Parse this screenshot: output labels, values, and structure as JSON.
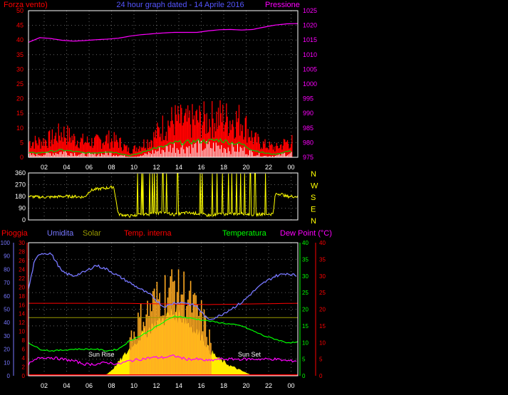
{
  "chart_data": [
    {
      "type": "line",
      "panel": "wind-pressure",
      "title": "24 hour graph dated - 14 Aprile 2016",
      "left_axis": {
        "label": "Forza vento)",
        "ticks": [
          "0",
          "5",
          "10",
          "15",
          "20",
          "25",
          "30",
          "35",
          "40",
          "45",
          "50"
        ],
        "ylim": [
          0,
          50
        ]
      },
      "right_axis": {
        "label": "Pressione",
        "ticks": [
          "975",
          "980",
          "985",
          "990",
          "995",
          "1000",
          "1005",
          "1010",
          "1015",
          "1020",
          "1025"
        ],
        "ylim": [
          975,
          1025
        ]
      },
      "x_ticks": [
        "02",
        "04",
        "06",
        "08",
        "10",
        "12",
        "14",
        "16",
        "18",
        "20",
        "22",
        "00"
      ],
      "grid": true,
      "series": [
        {
          "name": "Pressione",
          "color": "#ff00ff",
          "x": [
            0,
            1,
            2,
            3,
            4,
            5,
            6,
            7,
            8,
            9,
            10,
            11,
            12,
            13,
            14,
            15,
            16,
            17,
            18,
            19,
            20,
            21,
            22,
            23,
            24
          ],
          "y": [
            1014.2,
            1015.8,
            1015.5,
            1014.9,
            1014.6,
            1014.8,
            1015.1,
            1015.3,
            1015.6,
            1016.3,
            1016.8,
            1017.1,
            1017.4,
            1017.6,
            1017.6,
            1017.6,
            1018.1,
            1018.5,
            1018.6,
            1018.4,
            1018.6,
            1019.4,
            1020.1,
            1020.5,
            1020.6
          ]
        },
        {
          "color": "#ff0000",
          "x": [
            0,
            1,
            2,
            3,
            4,
            5,
            6,
            7,
            8,
            9,
            10,
            11,
            12,
            13,
            14,
            15,
            16,
            17,
            18,
            19,
            20,
            21,
            22,
            23,
            24
          ],
          "y": [
            5,
            5,
            6,
            8,
            6,
            5,
            5,
            6,
            5,
            2,
            4,
            6,
            10,
            12,
            11,
            12,
            12,
            13,
            12,
            12,
            6,
            4,
            3,
            5,
            5
          ]
        },
        {
          "color": "#00cc00",
          "x": [
            0,
            1,
            2,
            3,
            4,
            5,
            6,
            7,
            8,
            9,
            10,
            11,
            12,
            13,
            14,
            15,
            16,
            17,
            18,
            19,
            20,
            21,
            22,
            23,
            24
          ],
          "y": [
            1.5,
            1.5,
            2,
            2.5,
            2,
            1.5,
            1.5,
            2,
            1.5,
            0.5,
            1.5,
            3,
            3.5,
            5,
            5,
            5.5,
            5.5,
            6,
            5,
            4.5,
            2.5,
            1.5,
            1,
            2,
            2
          ]
        },
        {
          "color": "#ffffff",
          "x": [
            0,
            1,
            2,
            3,
            4,
            5,
            6,
            7,
            8,
            9,
            10,
            11,
            12,
            13,
            14,
            15,
            16,
            17,
            18,
            19,
            20,
            21,
            22,
            23,
            24
          ],
          "y": [
            1,
            1,
            1.5,
            2,
            1.5,
            1,
            1,
            1.5,
            1,
            0,
            0.5,
            2,
            3,
            4,
            4,
            4,
            4,
            4,
            3.5,
            3,
            1.5,
            0.5,
            0.5,
            1.5,
            1.5
          ]
        }
      ]
    },
    {
      "type": "line",
      "panel": "wind-direction",
      "left_axis": {
        "ticks": [
          "0",
          "90",
          "180",
          "270",
          "360"
        ],
        "ylim": [
          0,
          360
        ]
      },
      "right_labels": [
        "N",
        "W",
        "S",
        "E",
        "N"
      ],
      "grid": true,
      "series": [
        {
          "color": "#ffff00",
          "x": [
            0,
            1,
            2,
            3,
            4,
            5,
            5.5,
            6,
            7,
            7.4,
            7.6,
            8,
            9,
            10,
            11,
            12,
            13,
            14,
            15,
            16,
            17,
            18,
            19,
            20,
            21,
            21.8,
            22,
            22.5,
            23,
            24
          ],
          "y": [
            180,
            175,
            175,
            180,
            180,
            175,
            225,
            235,
            245,
            250,
            255,
            45,
            30,
            40,
            45,
            60,
            40,
            55,
            50,
            35,
            45,
            45,
            50,
            40,
            45,
            45,
            200,
            200,
            180,
            180
          ]
        }
      ]
    },
    {
      "type": "line",
      "panel": "weather",
      "legend": [
        {
          "label": "Pioggia",
          "color": "#ff0000"
        },
        {
          "label": "Umidita",
          "color": "#7777ff"
        },
        {
          "label": "Solar",
          "color": "#999900"
        },
        {
          "label": "Temp. interna",
          "color": "#ff0000"
        },
        {
          "label": "Temperatura",
          "color": "#00ff00"
        },
        {
          "label": "Dew Point (°C)",
          "color": "#ff00ff"
        }
      ],
      "axis_humidity": {
        "ticks": [
          "0",
          "10",
          "20",
          "30",
          "40",
          "50",
          "60",
          "70",
          "80",
          "90",
          "100"
        ],
        "ylim": [
          0,
          100
        ]
      },
      "axis_rain": {
        "ticks": [
          "0",
          "2",
          "4",
          "6",
          "8",
          "10",
          "12",
          "14",
          "16",
          "18",
          "20",
          "22",
          "24",
          "26",
          "28",
          "30"
        ],
        "ylim": [
          0,
          30
        ]
      },
      "axis_temp_right": {
        "ticks": [
          "0",
          "5",
          "10",
          "15",
          "20",
          "25",
          "30",
          "35",
          "40"
        ],
        "ylim": [
          0,
          40
        ]
      },
      "axis_dew_right": {
        "ticks": [
          "0",
          "5",
          "10",
          "15",
          "20",
          "25",
          "30",
          "35",
          "40"
        ],
        "ylim": [
          0,
          40
        ]
      },
      "x_ticks": [
        "02",
        "04",
        "06",
        "08",
        "10",
        "12",
        "14",
        "16",
        "18",
        "20",
        "22",
        "00"
      ],
      "annotations": [
        "Sun Rise",
        "Sun Set"
      ],
      "grid": true,
      "series": [
        {
          "name": "Umidita",
          "color": "#7777ff",
          "x": [
            0,
            0.5,
            1,
            2,
            3,
            4,
            5,
            6,
            7,
            8,
            9,
            10,
            11,
            12,
            12.5,
            13,
            14,
            15,
            16,
            17,
            18,
            19,
            20,
            21,
            22,
            23,
            24
          ],
          "y": [
            65,
            85,
            92,
            92,
            78,
            75,
            78,
            83,
            80,
            75,
            70,
            65,
            60,
            52,
            53,
            55,
            55,
            52,
            42,
            45,
            50,
            55,
            63,
            70,
            75,
            77,
            75
          ]
        },
        {
          "name": "Temp. interna",
          "color": "#ff0000",
          "x": [
            0,
            4,
            8,
            12,
            16,
            20,
            24
          ],
          "y": [
            21.8,
            21.8,
            21.8,
            21.6,
            21.4,
            21.6,
            21.8
          ]
        },
        {
          "name": "Temperatura",
          "color": "#00ff00",
          "x": [
            0,
            1,
            2,
            3,
            4,
            5,
            6,
            7,
            8,
            9,
            10,
            11,
            12,
            13,
            14,
            15,
            16,
            17,
            18,
            19,
            20,
            21,
            22,
            23,
            24
          ],
          "y": [
            10,
            8,
            7.5,
            7.7,
            8,
            8,
            8,
            7.5,
            8,
            10.5,
            12,
            14,
            16,
            18,
            17.5,
            17,
            16.5,
            16,
            15.5,
            15,
            13.5,
            12,
            11,
            10,
            10
          ]
        },
        {
          "name": "Dew Point (°C)",
          "color": "#ff00ff",
          "x": [
            0,
            1,
            2,
            3,
            4,
            5,
            6,
            7,
            8,
            9,
            10,
            11,
            12,
            13,
            14,
            15,
            16,
            17,
            18,
            19,
            20,
            21,
            22,
            23,
            24
          ],
          "y": [
            3.5,
            5.5,
            5.5,
            5,
            4.5,
            3.5,
            3.5,
            4,
            3.5,
            4.5,
            5,
            5.5,
            5.5,
            6,
            5,
            5,
            4.5,
            5,
            5,
            5,
            5,
            5,
            5,
            4.5,
            4.5
          ]
        },
        {
          "name": "Solar",
          "color": "#ffdd00",
          "x": [
            0,
            6,
            7,
            7.5,
            8,
            9,
            9.5,
            10,
            10.5,
            11,
            11.5,
            12,
            12.5,
            13,
            13.5,
            14,
            14.5,
            15,
            15.5,
            16,
            17,
            18,
            19,
            20,
            24
          ],
          "y": [
            0,
            0,
            0.5,
            2,
            4,
            8,
            10,
            12,
            13,
            15,
            16,
            17,
            18,
            19,
            18,
            17,
            15,
            13,
            12,
            8,
            5,
            3,
            1.5,
            0,
            0
          ]
        }
      ]
    }
  ]
}
